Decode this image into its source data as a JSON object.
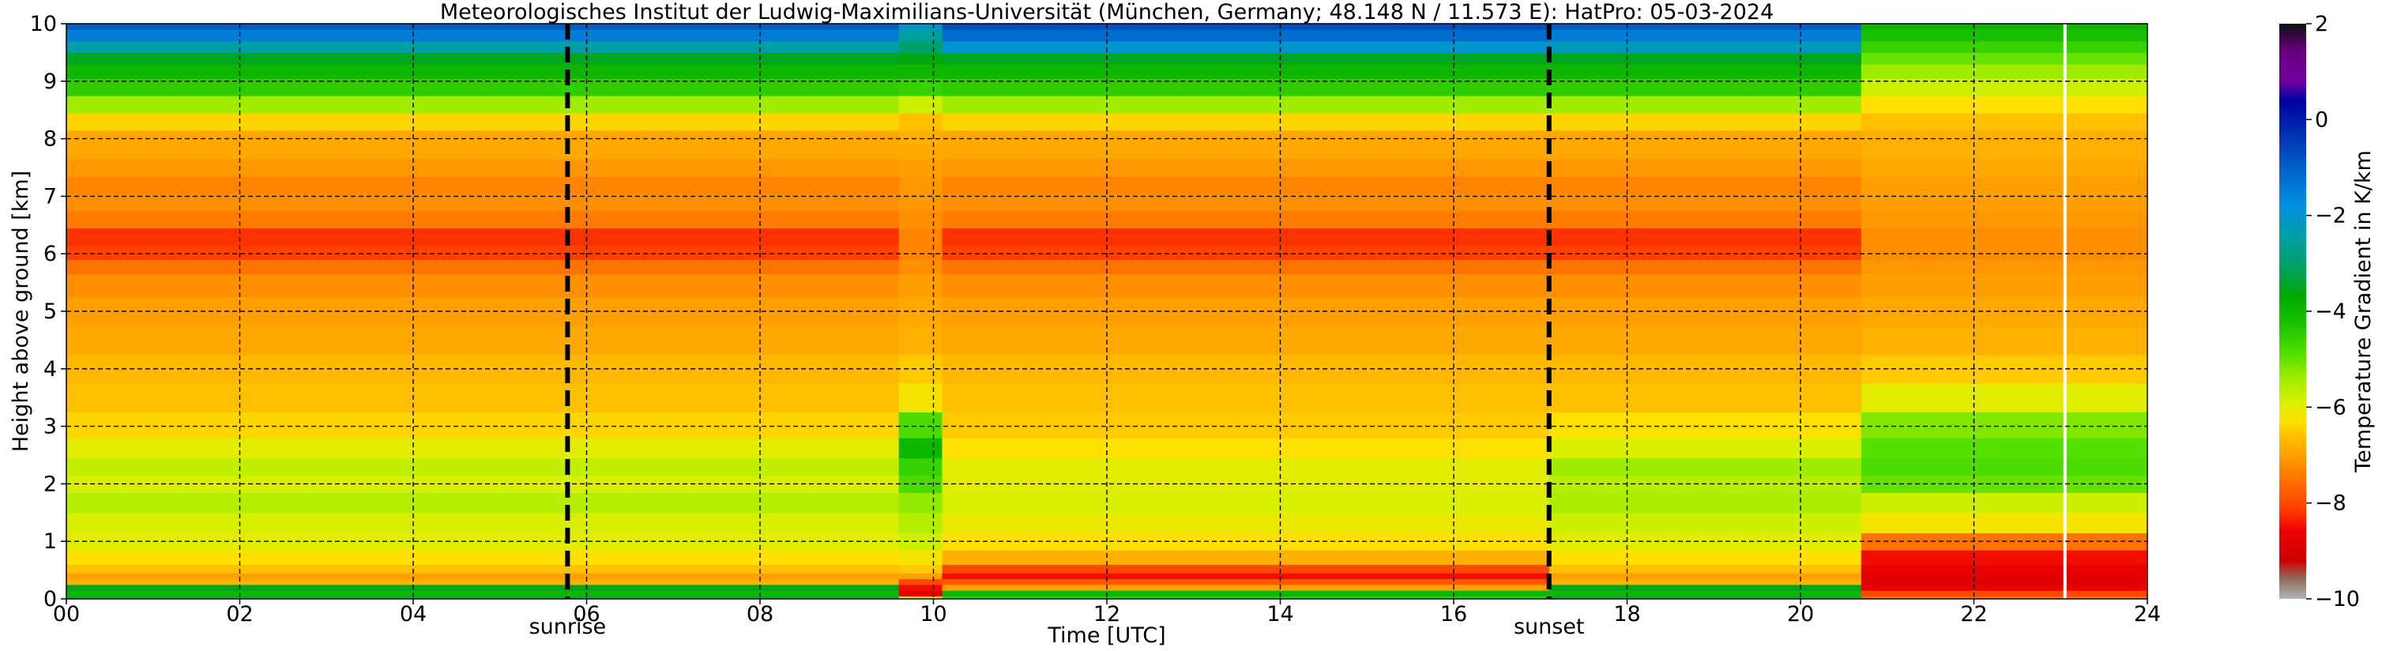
{
  "chart_data": {
    "type": "heatmap",
    "title": "Meteorologisches Institut der Ludwig-Maximilians-Universität (München, Germany; 48.148 N / 11.573 E):    HatPro: 05-03-2024",
    "xlabel": "Time [UTC]",
    "ylabel": "Height above ground [km]",
    "colorbar_label": "Temperature Gradient in K/km",
    "x_tick_labels": [
      "00",
      "02",
      "04",
      "06",
      "08",
      "10",
      "12",
      "14",
      "16",
      "18",
      "20",
      "22",
      "24"
    ],
    "y_tick_labels": [
      "0",
      "1",
      "2",
      "3",
      "4",
      "5",
      "6",
      "7",
      "8",
      "9",
      "10"
    ],
    "colorbar_tick_labels": [
      "2",
      "0",
      "−2",
      "−4",
      "−6",
      "−8",
      "−10"
    ],
    "xlim": [
      0,
      24
    ],
    "ylim": [
      0,
      10
    ],
    "clim": [
      -10,
      2
    ],
    "grid": true,
    "sunrise": {
      "time_utc": 5.78,
      "label": "sunrise"
    },
    "sunset": {
      "time_utc": 17.1,
      "label": "sunset"
    },
    "missing_data_time_utc": 23.05,
    "heights_km": [
      0.0,
      0.1,
      0.2,
      0.3,
      0.4,
      0.5,
      0.7,
      1.0,
      1.3,
      1.7,
      2.0,
      2.3,
      2.6,
      3.0,
      3.5,
      4.0,
      4.5,
      5.0,
      5.5,
      5.8,
      6.0,
      6.3,
      6.6,
      6.9,
      7.2,
      7.5,
      7.8,
      8.0,
      8.3,
      8.6,
      8.9,
      9.2,
      9.4,
      9.6,
      9.8,
      10.0
    ],
    "profiles": [
      {
        "time_range_utc": [
          0.0,
          9.6
        ],
        "gradient_k_per_km": [
          -3.0,
          -4.0,
          -3.5,
          -6.8,
          -7.0,
          -6.6,
          -6.3,
          -6.0,
          -5.9,
          -5.6,
          -5.9,
          -5.7,
          -6.0,
          -6.4,
          -6.6,
          -6.7,
          -6.9,
          -7.0,
          -7.2,
          -7.5,
          -8.1,
          -8.2,
          -7.4,
          -7.2,
          -7.3,
          -7.1,
          -6.9,
          -6.9,
          -6.4,
          -5.4,
          -4.5,
          -4.0,
          -3.5,
          -2.4,
          -1.5,
          -1.0
        ]
      },
      {
        "time_range_utc": [
          9.6,
          10.1
        ],
        "gradient_k_per_km": [
          -6.0,
          -8.8,
          -8.5,
          -8.0,
          -7.0,
          -6.5,
          -6.2,
          -5.8,
          -5.6,
          -5.3,
          -4.8,
          -4.6,
          -4.0,
          -4.8,
          -6.2,
          -6.5,
          -6.8,
          -6.9,
          -7.0,
          -7.2,
          -7.3,
          -7.3,
          -7.2,
          -7.1,
          -7.1,
          -7.0,
          -6.9,
          -6.8,
          -6.6,
          -5.8,
          -4.6,
          -4.0,
          -3.6,
          -3.0,
          -2.5,
          -2.0
        ]
      },
      {
        "time_range_utc": [
          10.1,
          17.1
        ],
        "gradient_k_per_km": [
          -4.5,
          -4.0,
          -7.0,
          -7.8,
          -8.5,
          -8.0,
          -6.8,
          -6.3,
          -6.1,
          -5.9,
          -6.0,
          -6.0,
          -6.3,
          -6.5,
          -6.6,
          -6.7,
          -6.9,
          -7.0,
          -7.2,
          -7.5,
          -8.1,
          -8.2,
          -7.4,
          -7.2,
          -7.3,
          -7.1,
          -6.9,
          -6.9,
          -6.4,
          -5.4,
          -4.5,
          -4.0,
          -3.5,
          -2.0,
          -1.2,
          -0.8
        ]
      },
      {
        "time_range_utc": [
          17.1,
          20.7
        ],
        "gradient_k_per_km": [
          -3.0,
          -4.0,
          -3.5,
          -6.8,
          -7.0,
          -6.6,
          -6.3,
          -6.0,
          -5.8,
          -5.5,
          -5.6,
          -5.4,
          -5.9,
          -6.3,
          -6.6,
          -6.7,
          -6.9,
          -7.0,
          -7.2,
          -7.5,
          -8.1,
          -8.2,
          -7.4,
          -7.2,
          -7.3,
          -7.1,
          -6.9,
          -6.9,
          -6.4,
          -5.4,
          -4.5,
          -4.0,
          -3.5,
          -2.2,
          -1.5,
          -1.0
        ]
      },
      {
        "time_range_utc": [
          20.7,
          24.0
        ],
        "gradient_k_per_km": [
          -7.5,
          -8.0,
          -8.6,
          -8.9,
          -8.8,
          -8.7,
          -8.5,
          -7.5,
          -6.2,
          -5.8,
          -5.0,
          -4.8,
          -4.9,
          -5.2,
          -6.0,
          -6.5,
          -6.8,
          -6.9,
          -7.0,
          -7.1,
          -7.2,
          -7.2,
          -7.1,
          -7.0,
          -7.0,
          -6.9,
          -6.8,
          -6.8,
          -6.6,
          -6.3,
          -5.8,
          -5.4,
          -5.0,
          -4.6,
          -4.2,
          -4.0
        ]
      }
    ],
    "colormap": [
      {
        "value": -10.0,
        "color": "#b4b4b4"
      },
      {
        "value": -9.6,
        "color": "#8f7060"
      },
      {
        "value": -9.2,
        "color": "#cc0000"
      },
      {
        "value": -8.6,
        "color": "#ee0000"
      },
      {
        "value": -8.1,
        "color": "#ff4000"
      },
      {
        "value": -7.6,
        "color": "#ff6a00"
      },
      {
        "value": -7.0,
        "color": "#ffa000"
      },
      {
        "value": -6.6,
        "color": "#ffc000"
      },
      {
        "value": -6.3,
        "color": "#ffe000"
      },
      {
        "value": -5.9,
        "color": "#d8f000"
      },
      {
        "value": -5.4,
        "color": "#a0ec00"
      },
      {
        "value": -4.9,
        "color": "#55e000"
      },
      {
        "value": -4.3,
        "color": "#1cc400"
      },
      {
        "value": -3.7,
        "color": "#00a800"
      },
      {
        "value": -3.1,
        "color": "#00a060"
      },
      {
        "value": -2.5,
        "color": "#00a0a0"
      },
      {
        "value": -1.8,
        "color": "#0090e0"
      },
      {
        "value": -1.0,
        "color": "#0060c8"
      },
      {
        "value": -0.3,
        "color": "#0030b0"
      },
      {
        "value": 0.4,
        "color": "#0000a0"
      },
      {
        "value": 0.8,
        "color": "#7000a0"
      },
      {
        "value": 1.4,
        "color": "#6a0080"
      },
      {
        "value": 2.0,
        "color": "#101010"
      }
    ]
  }
}
